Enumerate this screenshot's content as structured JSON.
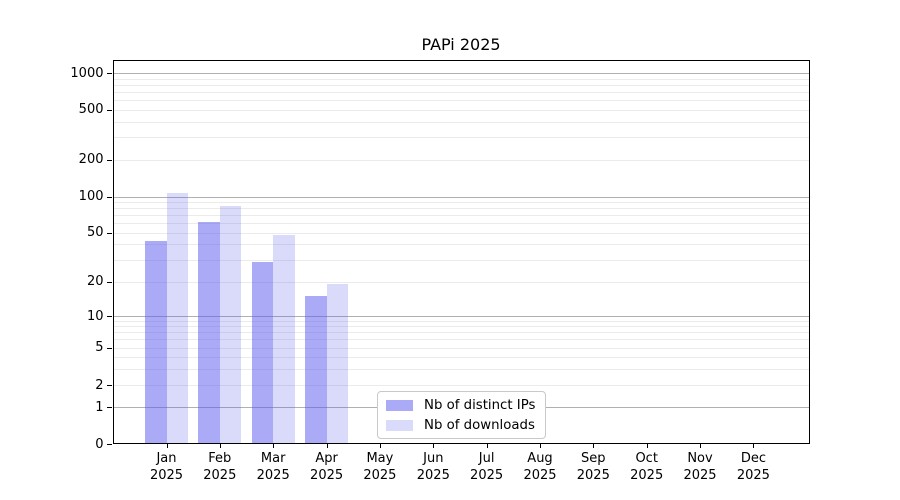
{
  "chart_data": {
    "type": "bar",
    "title": "PAPi 2025",
    "months": [
      "Jan",
      "Feb",
      "Mar",
      "Apr",
      "May",
      "Jun",
      "Jul",
      "Aug",
      "Sep",
      "Oct",
      "Nov",
      "Dec"
    ],
    "year": "2025",
    "series": [
      {
        "name": "Nb of distinct IPs",
        "values": [
          43,
          61,
          29,
          15,
          0,
          0,
          0,
          0,
          0,
          0,
          0,
          0
        ],
        "color": "#5555ee",
        "opacity": 0.5
      },
      {
        "name": "Nb of downloads",
        "values": [
          106,
          84,
          48,
          19,
          0,
          0,
          0,
          0,
          0,
          0,
          0,
          0
        ],
        "color": "#5555ee",
        "opacity": 0.22
      }
    ],
    "yticks": [
      0,
      1,
      2,
      5,
      10,
      20,
      50,
      100,
      200,
      500,
      1000
    ],
    "yscale": "symlog",
    "grid": "major+minor",
    "legend_position": "lower center",
    "colors": {
      "bar_dark": "#a8a8f5",
      "bar_light": "#dadaf9",
      "grid_major": "#b0b0b0",
      "grid_minor": "#ebebeb",
      "axis": "#000000"
    }
  }
}
